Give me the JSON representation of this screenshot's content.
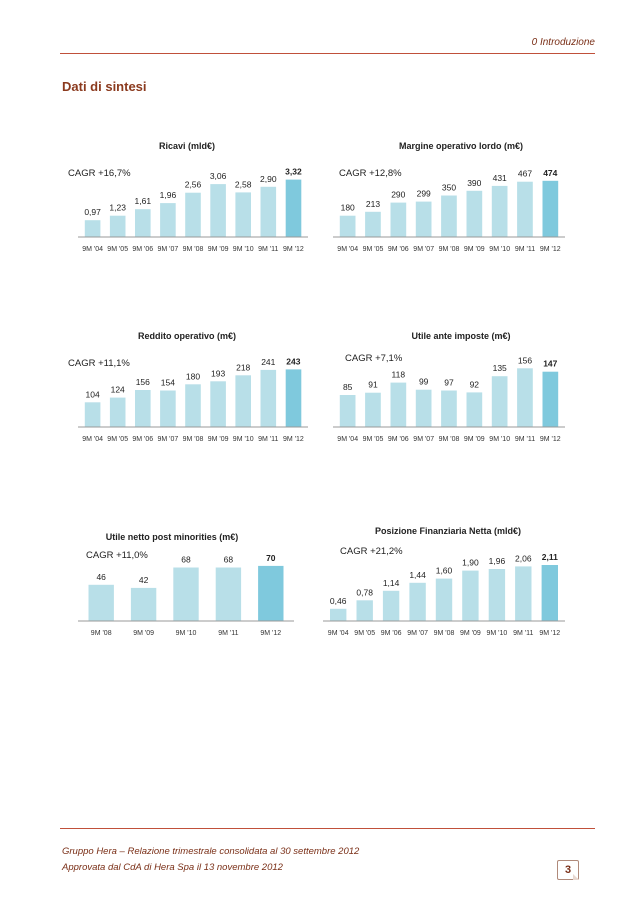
{
  "header": {
    "label": "0 Introduzione"
  },
  "page": {
    "title": "Dati di sintesi",
    "number": "3"
  },
  "footer": {
    "line1": "Gruppo Hera – Relazione trimestrale consolidata al 30 settembre 2012",
    "line2": "Approvata dal CdA di Hera Spa il 13 novembre 2012"
  },
  "colors": {
    "bar": "#b8dfe8",
    "bar_highlight": "#7fc9dd",
    "axis": "#999999"
  },
  "chart_data": [
    {
      "type": "bar",
      "title": "Ricavi (mld€)",
      "annotation": "CAGR +16,7%",
      "categories": [
        "9M '04",
        "9M '05",
        "9M '06",
        "9M '07",
        "9M '08",
        "9M '09",
        "9M '10",
        "9M '11",
        "9M '12"
      ],
      "values": [
        0.97,
        1.23,
        1.61,
        1.96,
        2.56,
        3.06,
        2.58,
        2.9,
        3.32
      ],
      "labels": [
        "0,97",
        "1,23",
        "1,61",
        "1,96",
        "2,56",
        "3,06",
        "2,58",
        "2,90",
        "3,32"
      ],
      "highlight_last": true
    },
    {
      "type": "bar",
      "title": "Margine operativo lordo (m€)",
      "annotation": "CAGR +12,8%",
      "categories": [
        "9M '04",
        "9M '05",
        "9M '06",
        "9M '07",
        "9M '08",
        "9M '09",
        "9M '10",
        "9M '11",
        "9M '12"
      ],
      "values": [
        180,
        213,
        290,
        299,
        350,
        390,
        431,
        467,
        474
      ],
      "labels": [
        "180",
        "213",
        "290",
        "299",
        "350",
        "390",
        "431",
        "467",
        "474"
      ],
      "highlight_last": true
    },
    {
      "type": "bar",
      "title": "Reddito operativo (m€)",
      "annotation": "CAGR +11,1%",
      "categories": [
        "9M '04",
        "9M '05",
        "9M '06",
        "9M '07",
        "9M '08",
        "9M '09",
        "9M '10",
        "9M '11",
        "9M '12"
      ],
      "values": [
        104,
        124,
        156,
        154,
        180,
        193,
        218,
        241,
        243
      ],
      "labels": [
        "104",
        "124",
        "156",
        "154",
        "180",
        "193",
        "218",
        "241",
        "243"
      ],
      "highlight_last": true
    },
    {
      "type": "bar",
      "title": "Utile ante imposte (m€)",
      "annotation": "CAGR +7,1%",
      "categories": [
        "9M '04",
        "9M '05",
        "9M '06",
        "9M '07",
        "9M '08",
        "9M '09",
        "9M '10",
        "9M '11",
        "9M '12"
      ],
      "values": [
        85,
        91,
        118,
        99,
        97,
        92,
        135,
        156,
        147
      ],
      "labels": [
        "85",
        "91",
        "118",
        "99",
        "97",
        "92",
        "135",
        "156",
        "147"
      ],
      "highlight_last": true
    },
    {
      "type": "bar",
      "title": "Utile netto post minorities (m€)",
      "annotation": "CAGR +11,0%",
      "categories": [
        "9M '08",
        "9M '09",
        "9M '10",
        "9M '11",
        "9M '12"
      ],
      "values": [
        46,
        42,
        68,
        68,
        70
      ],
      "labels": [
        "46",
        "42",
        "68",
        "68",
        "70"
      ],
      "highlight_last": true
    },
    {
      "type": "bar",
      "title": "Posizione Finanziaria Netta (mld€)",
      "annotation": "CAGR +21,2%",
      "categories": [
        "9M '04",
        "9M '05",
        "9M '06",
        "9M '07",
        "9M '08",
        "9M '09",
        "9M '10",
        "9M '11",
        "9M '12"
      ],
      "values": [
        0.46,
        0.78,
        1.14,
        1.44,
        1.6,
        1.9,
        1.96,
        2.06,
        2.11
      ],
      "labels": [
        "0,46",
        "0,78",
        "1,14",
        "1,44",
        "1,60",
        "1,90",
        "1,96",
        "2,06",
        "2,11"
      ],
      "highlight_last": true
    }
  ]
}
